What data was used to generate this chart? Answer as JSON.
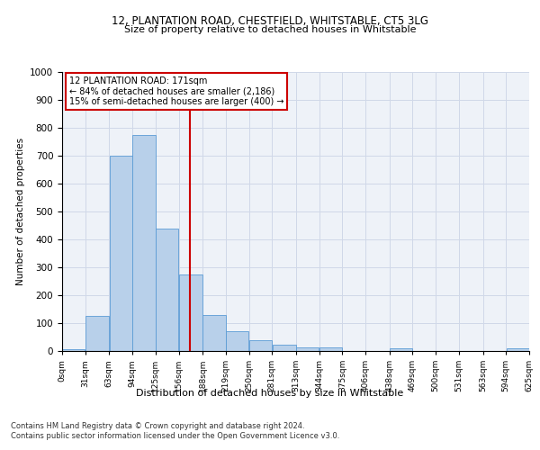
{
  "title_line1": "12, PLANTATION ROAD, CHESTFIELD, WHITSTABLE, CT5 3LG",
  "title_line2": "Size of property relative to detached houses in Whitstable",
  "xlabel": "Distribution of detached houses by size in Whitstable",
  "ylabel": "Number of detached properties",
  "bar_color": "#b8d0ea",
  "bar_edge_color": "#5b9bd5",
  "annotation_box_text": "12 PLANTATION ROAD: 171sqm\n← 84% of detached houses are smaller (2,186)\n15% of semi-detached houses are larger (400) →",
  "annotation_box_color": "#ffffff",
  "annotation_box_edge_color": "#cc0000",
  "vline_x": 171,
  "vline_color": "#cc0000",
  "bin_edges": [
    0,
    31,
    63,
    94,
    125,
    156,
    188,
    219,
    250,
    281,
    313,
    344,
    375,
    406,
    438,
    469,
    500,
    531,
    563,
    594,
    625
  ],
  "bar_heights": [
    5,
    125,
    700,
    775,
    440,
    275,
    130,
    70,
    40,
    22,
    12,
    12,
    0,
    0,
    10,
    0,
    0,
    0,
    0,
    10
  ],
  "xlim": [
    0,
    625
  ],
  "ylim": [
    0,
    1000
  ],
  "yticks": [
    0,
    100,
    200,
    300,
    400,
    500,
    600,
    700,
    800,
    900,
    1000
  ],
  "xtick_labels": [
    "0sqm",
    "31sqm",
    "63sqm",
    "94sqm",
    "125sqm",
    "156sqm",
    "188sqm",
    "219sqm",
    "250sqm",
    "281sqm",
    "313sqm",
    "344sqm",
    "375sqm",
    "406sqm",
    "438sqm",
    "469sqm",
    "500sqm",
    "531sqm",
    "563sqm",
    "594sqm",
    "625sqm"
  ],
  "grid_color": "#d0d8e8",
  "background_color": "#eef2f8",
  "footer_line1": "Contains HM Land Registry data © Crown copyright and database right 2024.",
  "footer_line2": "Contains public sector information licensed under the Open Government Licence v3.0."
}
